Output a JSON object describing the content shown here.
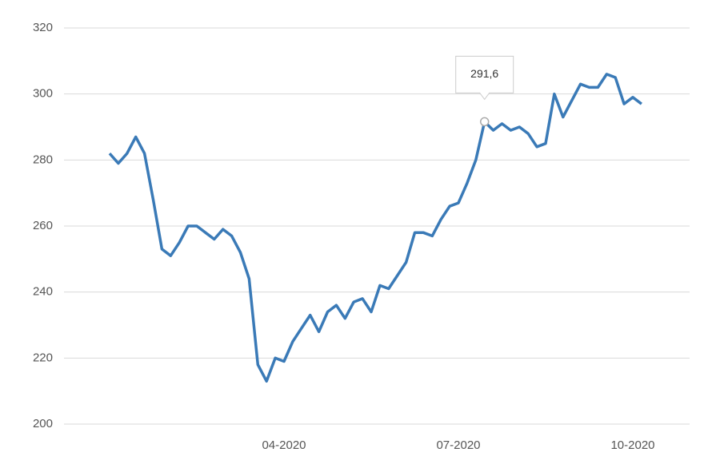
{
  "chart_data": {
    "type": "line",
    "categories": [
      null,
      null,
      null,
      null,
      null,
      null,
      null,
      null,
      null,
      null,
      null,
      null,
      null,
      null,
      null,
      null,
      null,
      null,
      null,
      null,
      "04-2020",
      null,
      null,
      null,
      null,
      null,
      null,
      null,
      null,
      null,
      null,
      null,
      null,
      null,
      null,
      null,
      null,
      null,
      null,
      null,
      "07-2020",
      null,
      null,
      null,
      null,
      null,
      null,
      null,
      null,
      null,
      null,
      null,
      null,
      null,
      null,
      null,
      null,
      null,
      null,
      null,
      "10-2020",
      null
    ],
    "values": [
      282,
      279,
      282,
      287,
      282,
      268,
      253,
      251,
      255,
      260,
      260,
      258,
      256,
      259,
      257,
      252,
      244,
      218,
      213,
      220,
      219,
      225,
      229,
      233,
      228,
      234,
      236,
      232,
      237,
      238,
      234,
      242,
      241,
      245,
      249,
      258,
      258,
      257,
      262,
      266,
      267,
      273,
      280,
      291.6,
      289,
      291,
      289,
      290,
      288,
      284,
      285,
      300,
      293,
      298,
      303,
      302,
      302,
      306,
      305,
      297,
      299,
      297
    ],
    "value_labels": [
      null,
      null,
      null,
      null,
      null,
      null,
      null,
      null,
      null,
      null,
      null,
      null,
      null,
      null,
      null,
      null,
      null,
      null,
      null,
      null,
      null,
      null,
      null,
      null,
      null,
      null,
      null,
      null,
      null,
      null,
      null,
      null,
      null,
      null,
      null,
      null,
      null,
      null,
      null,
      null,
      null,
      null,
      null,
      "291,6",
      null,
      null,
      null,
      null,
      null,
      null,
      null,
      null,
      null,
      null,
      null,
      null,
      null,
      null,
      null,
      null,
      null,
      null
    ],
    "color": "#3a7ab7",
    "ylim": [
      200,
      320
    ],
    "yticks": [
      200,
      220,
      240,
      260,
      280,
      300,
      320
    ],
    "grid": true
  }
}
